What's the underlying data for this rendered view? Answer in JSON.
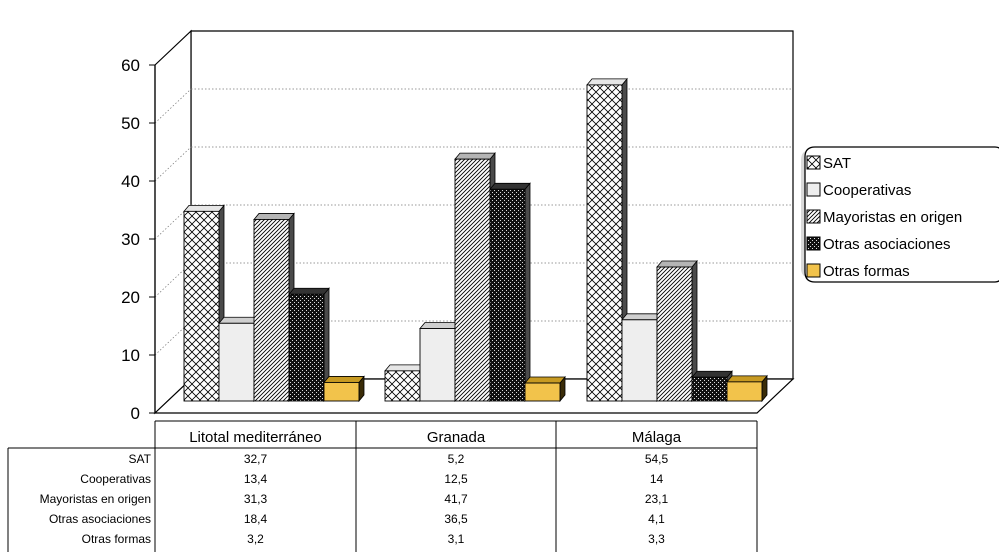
{
  "chart_data": {
    "type": "bar",
    "categories": [
      "Litotal mediterráneo",
      "Granada",
      "Málaga"
    ],
    "series": [
      {
        "name": "SAT",
        "values": [
          32.7,
          5.2,
          54.5
        ],
        "pattern": "crosshatch"
      },
      {
        "name": "Cooperativas",
        "values": [
          13.4,
          12.5,
          14
        ],
        "pattern": "light-gray"
      },
      {
        "name": "Mayoristas en origen",
        "values": [
          31.3,
          41.7,
          23.1
        ],
        "pattern": "diagonal"
      },
      {
        "name": "Otras asociaciones",
        "values": [
          18.4,
          36.5,
          4.1
        ],
        "pattern": "dark-dots"
      },
      {
        "name": "Otras formas",
        "values": [
          3.2,
          3.1,
          3.3
        ],
        "color": "#f2c34b"
      }
    ],
    "y_ticks": [
      "0",
      "10",
      "20",
      "30",
      "40",
      "50",
      "60"
    ],
    "ylim": [
      0,
      60
    ],
    "grid": true,
    "legend_position": "right",
    "data_table": [
      {
        "label": "SAT",
        "values": [
          "32,7",
          "5,2",
          "54,5"
        ]
      },
      {
        "label": "Cooperativas",
        "values": [
          "13,4",
          "12,5",
          "14"
        ]
      },
      {
        "label": "Mayoristas en origen",
        "values": [
          "31,3",
          "41,7",
          "23,1"
        ]
      },
      {
        "label": "Otras asociaciones",
        "values": [
          "18,4",
          "36,5",
          "4,1"
        ]
      },
      {
        "label": "Otras formas",
        "values": [
          "3,2",
          "3,1",
          "3,3"
        ]
      }
    ]
  }
}
